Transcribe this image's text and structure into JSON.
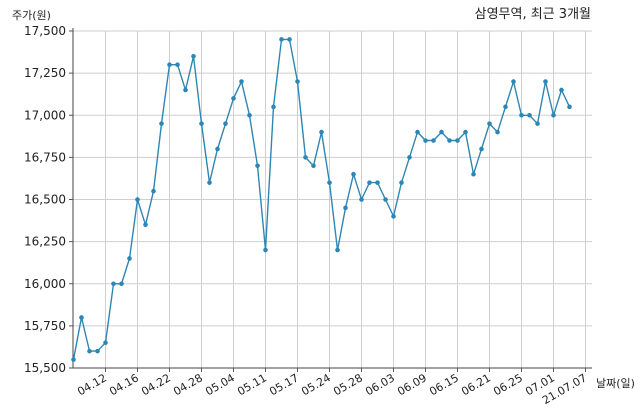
{
  "chart_data": {
    "type": "line",
    "title": "삼영무역, 최근 3개월",
    "ylabel": "주가(원)",
    "xlabel": "날짜(일)",
    "ylim": [
      15500,
      17500
    ],
    "yticks": [
      15500,
      15750,
      16000,
      16250,
      16500,
      16750,
      17000,
      17250,
      17500
    ],
    "ytick_labels": [
      "15,500",
      "15,750",
      "16,000",
      "16,250",
      "16,500",
      "16,750",
      "17,000",
      "17,250",
      "17,500"
    ],
    "xticks": [
      {
        "index": 4,
        "label": "04.12"
      },
      {
        "index": 8,
        "label": "04.16"
      },
      {
        "index": 12,
        "label": "04.22"
      },
      {
        "index": 16,
        "label": "04.28"
      },
      {
        "index": 20,
        "label": "05.04"
      },
      {
        "index": 24,
        "label": "05.11"
      },
      {
        "index": 28,
        "label": "05.17"
      },
      {
        "index": 32,
        "label": "05.24"
      },
      {
        "index": 36,
        "label": "05.28"
      },
      {
        "index": 40,
        "label": "06.03"
      },
      {
        "index": 44,
        "label": "06.09"
      },
      {
        "index": 48,
        "label": "06.15"
      },
      {
        "index": 52,
        "label": "06.21"
      },
      {
        "index": 56,
        "label": "06.25"
      },
      {
        "index": 60,
        "label": "07.01"
      },
      {
        "index": 64,
        "label": "21.07.07"
      }
    ],
    "grid": true,
    "series": [
      {
        "color": "#2e86b3",
        "values": [
          15550,
          15800,
          15600,
          15600,
          15650,
          16000,
          16000,
          16150,
          16500,
          16350,
          16550,
          16950,
          17300,
          17300,
          17150,
          17350,
          16950,
          16600,
          16800,
          16950,
          17100,
          17200,
          17000,
          16700,
          16200,
          17050,
          17450,
          17450,
          17200,
          16750,
          16700,
          16900,
          16600,
          16200,
          16450,
          16650,
          16500,
          16600,
          16600,
          16500,
          16400,
          16600,
          16750,
          16900,
          16850,
          16850,
          16900,
          16850,
          16850,
          16900,
          16650,
          16800,
          16950,
          16900,
          17050,
          17200,
          17000,
          17000,
          16950,
          17200,
          17000,
          17150,
          17050
        ]
      }
    ]
  }
}
